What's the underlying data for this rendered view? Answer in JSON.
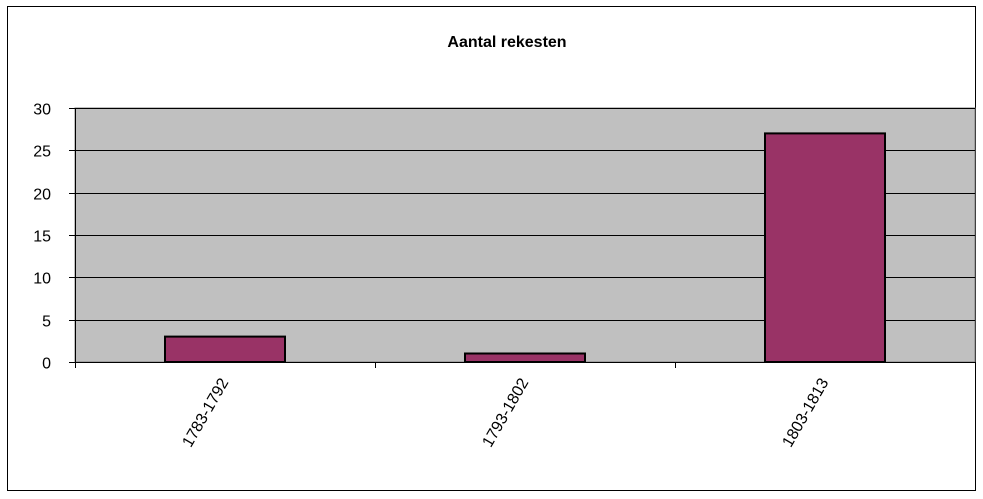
{
  "chart_data": {
    "type": "bar",
    "title": "Aantal rekesten",
    "categories": [
      "1783-1792",
      "1793-1802",
      "1803-1813"
    ],
    "values": [
      3,
      1,
      27
    ],
    "xlabel": "",
    "ylabel": "",
    "ylim": [
      0,
      30
    ],
    "yticks": [
      0,
      5,
      10,
      15,
      20,
      25,
      30
    ],
    "grid": true,
    "legend": "none",
    "colors": {
      "bar_fill": "#993366",
      "plot_background": "#c0c0c0",
      "gridline": "#000000"
    }
  }
}
